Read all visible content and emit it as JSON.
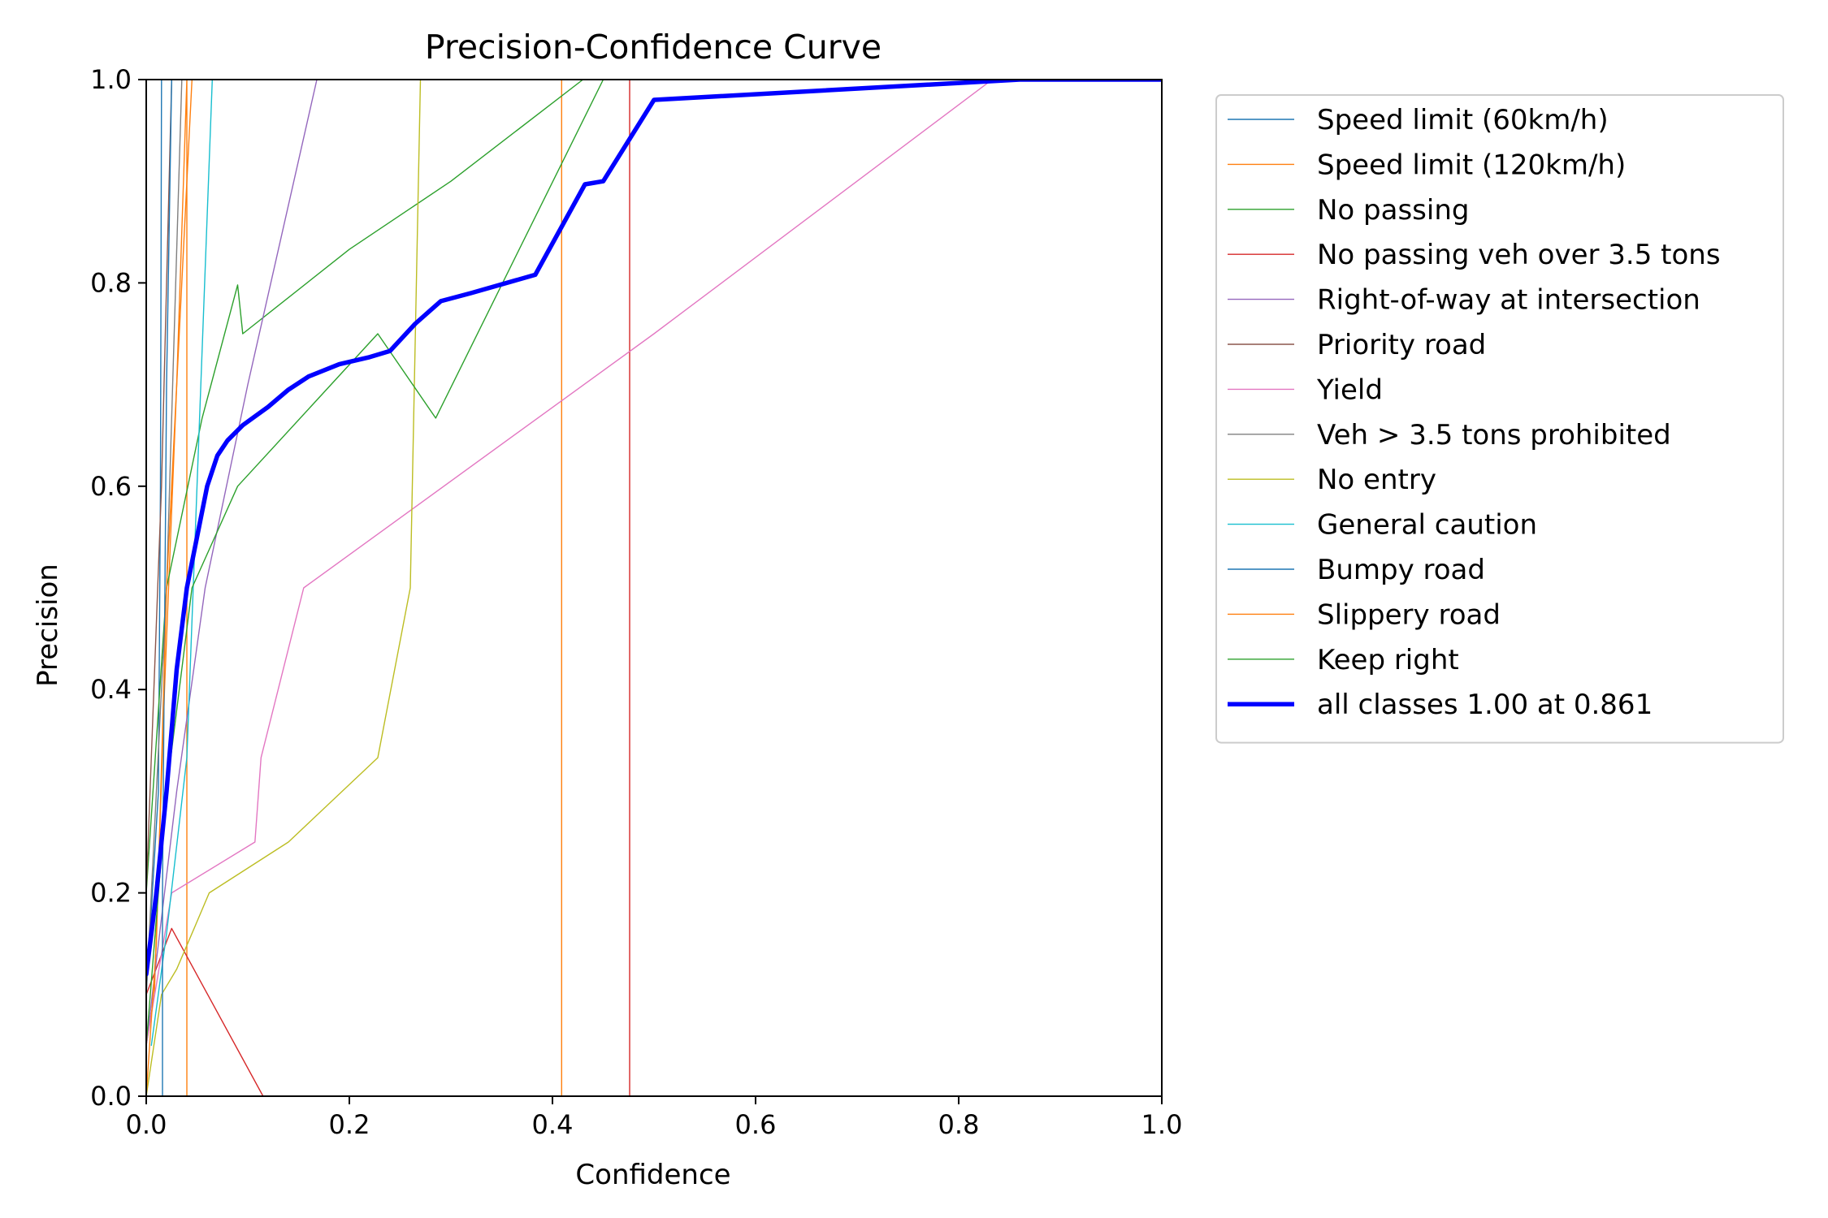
{
  "chart_data": {
    "type": "line",
    "title": "Precision-Confidence Curve",
    "xlabel": "Confidence",
    "ylabel": "Precision",
    "xlim": [
      0,
      1
    ],
    "ylim": [
      0,
      1
    ],
    "xticks": [
      0.0,
      0.2,
      0.4,
      0.6,
      0.8,
      1.0
    ],
    "yticks": [
      0.0,
      0.2,
      0.4,
      0.6,
      0.8,
      1.0
    ],
    "xtick_labels": [
      "0.0",
      "0.2",
      "0.4",
      "0.6",
      "0.8",
      "1.0"
    ],
    "ytick_labels": [
      "0.0",
      "0.2",
      "0.4",
      "0.6",
      "0.8",
      "1.0"
    ],
    "grid": false,
    "legend_position": "outside-right-top",
    "series": [
      {
        "name": "Speed limit (60km/h)",
        "color": "#1f77b4",
        "width": 1.4,
        "points": [
          [
            0.0,
            0.1
          ],
          [
            0.012,
            0.3
          ],
          [
            0.014,
            0.6
          ],
          [
            0.015,
            1.0
          ]
        ]
      },
      {
        "name": "Speed limit (120km/h)",
        "color": "#ff7f0e",
        "width": 1.4,
        "points": [
          [
            0.0,
            0.05
          ],
          [
            0.008,
            0.1
          ],
          [
            0.018,
            0.4
          ],
          [
            0.03,
            0.7
          ],
          [
            0.04,
            1.0
          ],
          [
            0.04,
            0.0
          ],
          [
            0.409,
            0.0
          ],
          [
            0.409,
            1.0
          ]
        ]
      },
      {
        "name": "No passing",
        "color": "#2ca02c",
        "width": 1.4,
        "points": [
          [
            0.0,
            0.2
          ],
          [
            0.02,
            0.5
          ],
          [
            0.055,
            0.667
          ],
          [
            0.09,
            0.798
          ],
          [
            0.095,
            0.75
          ],
          [
            0.2,
            0.833
          ],
          [
            0.3,
            0.9
          ],
          [
            0.43,
            1.0
          ]
        ]
      },
      {
        "name": "No passing veh over 3.5 tons",
        "color": "#d62728",
        "width": 1.4,
        "points": [
          [
            0.0,
            0.1
          ],
          [
            0.025,
            0.165
          ],
          [
            0.115,
            0.0
          ],
          [
            0.476,
            0.0
          ],
          [
            0.476,
            1.0
          ]
        ]
      },
      {
        "name": "Right-of-way at intersection",
        "color": "#9467bd",
        "width": 1.4,
        "points": [
          [
            0.0,
            0.05
          ],
          [
            0.03,
            0.3
          ],
          [
            0.058,
            0.5
          ],
          [
            0.1,
            0.7
          ],
          [
            0.168,
            1.0
          ]
        ]
      },
      {
        "name": "Priority road",
        "color": "#8c564b",
        "width": 1.4,
        "points": [
          [
            0.0,
            0.2
          ],
          [
            0.015,
            0.6
          ],
          [
            0.025,
            1.0
          ]
        ]
      },
      {
        "name": "Yield",
        "color": "#e377c2",
        "width": 1.4,
        "points": [
          [
            0.0,
            0.05
          ],
          [
            0.025,
            0.2
          ],
          [
            0.107,
            0.25
          ],
          [
            0.113,
            0.333
          ],
          [
            0.155,
            0.5
          ],
          [
            0.5,
            0.75
          ],
          [
            0.833,
            1.0
          ],
          [
            1.0,
            1.0
          ]
        ]
      },
      {
        "name": "Veh > 3.5 tons prohibited",
        "color": "#7f7f7f",
        "width": 1.4,
        "points": [
          [
            0.0,
            0.1
          ],
          [
            0.02,
            0.5
          ],
          [
            0.035,
            1.0
          ]
        ]
      },
      {
        "name": "No entry",
        "color": "#bcbd22",
        "width": 1.4,
        "points": [
          [
            0.0,
            0.0
          ],
          [
            0.015,
            0.1
          ],
          [
            0.03,
            0.125
          ],
          [
            0.048,
            0.167
          ],
          [
            0.062,
            0.2
          ],
          [
            0.14,
            0.25
          ],
          [
            0.228,
            0.333
          ],
          [
            0.26,
            0.5
          ],
          [
            0.27,
            1.0
          ]
        ]
      },
      {
        "name": "General caution",
        "color": "#17becf",
        "width": 1.4,
        "points": [
          [
            0.005,
            0.05
          ],
          [
            0.02,
            0.16
          ],
          [
            0.04,
            0.333
          ],
          [
            0.05,
            0.6
          ],
          [
            0.065,
            1.0
          ]
        ]
      },
      {
        "name": "Bumpy road",
        "color": "#1f77b4",
        "width": 1.4,
        "points": [
          [
            0.016,
            0.0
          ],
          [
            0.016,
            0.2
          ],
          [
            0.02,
            0.7
          ],
          [
            0.025,
            1.0
          ]
        ]
      },
      {
        "name": "Slippery road",
        "color": "#ff7f0e",
        "width": 1.4,
        "points": [
          [
            0.0,
            0.0
          ],
          [
            0.01,
            0.15
          ],
          [
            0.02,
            0.5
          ],
          [
            0.045,
            1.0
          ]
        ]
      },
      {
        "name": "Keep right",
        "color": "#2ca02c",
        "width": 1.4,
        "points": [
          [
            0.0,
            0.05
          ],
          [
            0.02,
            0.3
          ],
          [
            0.045,
            0.5
          ],
          [
            0.09,
            0.6
          ],
          [
            0.228,
            0.75
          ],
          [
            0.285,
            0.667
          ],
          [
            0.45,
            1.0
          ]
        ]
      },
      {
        "name": "all classes 1.00 at 0.861",
        "color": "#0000ff",
        "width": 5.5,
        "points": [
          [
            0.0,
            0.12
          ],
          [
            0.01,
            0.2
          ],
          [
            0.02,
            0.3
          ],
          [
            0.03,
            0.42
          ],
          [
            0.04,
            0.5
          ],
          [
            0.05,
            0.55
          ],
          [
            0.06,
            0.6
          ],
          [
            0.07,
            0.63
          ],
          [
            0.08,
            0.645
          ],
          [
            0.095,
            0.66
          ],
          [
            0.12,
            0.678
          ],
          [
            0.14,
            0.695
          ],
          [
            0.16,
            0.708
          ],
          [
            0.19,
            0.72
          ],
          [
            0.22,
            0.727
          ],
          [
            0.24,
            0.733
          ],
          [
            0.265,
            0.76
          ],
          [
            0.29,
            0.782
          ],
          [
            0.32,
            0.79
          ],
          [
            0.383,
            0.808
          ],
          [
            0.432,
            0.897
          ],
          [
            0.45,
            0.9
          ],
          [
            0.5,
            0.98
          ],
          [
            0.86,
            1.0
          ],
          [
            1.0,
            1.0
          ]
        ]
      }
    ]
  }
}
